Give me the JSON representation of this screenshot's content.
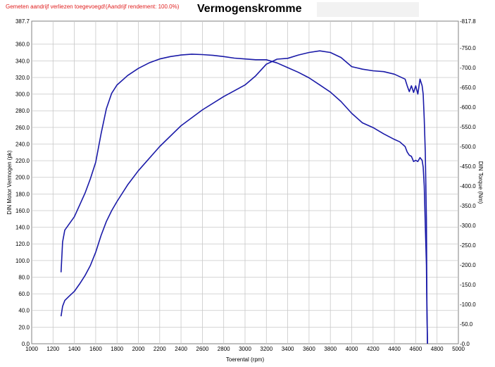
{
  "header": {
    "notice": "Gemeten aandrijf verliezen toegevoegd!(Aandrijf rendement: 100.0%)"
  },
  "chart_data": {
    "type": "line",
    "title": "Vermogenskromme",
    "xlabel": "Toerental (rpm)",
    "ylabel_left": "DIN Motor Vermogen (pk)",
    "ylabel_right": "DIN Torque (Nm)",
    "xlim": [
      1000,
      5000
    ],
    "ylim_left": [
      0,
      387.7
    ],
    "ylim_right": [
      0,
      817.8
    ],
    "grid": true,
    "x_ticks": [
      "1000",
      "1200",
      "1400",
      "1600",
      "1800",
      "2000",
      "2200",
      "2400",
      "2600",
      "2800",
      "3000",
      "3200",
      "3400",
      "3600",
      "3800",
      "4000",
      "4200",
      "4400",
      "4600",
      "4800",
      "5000"
    ],
    "y_ticks_left": [
      "0.0",
      "20.0",
      "40.0",
      "60.0",
      "80.0",
      "100.0",
      "120.0",
      "140.0",
      "160.0",
      "180.0",
      "200.0",
      "220.0",
      "240.0",
      "260.0",
      "280.0",
      "300.0",
      "320.0",
      "340.0",
      "360.0"
    ],
    "y_top_left": "387.7",
    "y_ticks_right": [
      "0.0",
      "50.0",
      "100.0",
      "150.0",
      "200.0",
      "250.0",
      "300.0",
      "350.0",
      "400.0",
      "450.0",
      "500.0",
      "550.0",
      "600.0",
      "650.0",
      "700.0",
      "750.0"
    ],
    "y_top_right": "817.8",
    "series": [
      {
        "axis": "left",
        "color": "#1a1aa8",
        "points": [
          [
            1275,
            33
          ],
          [
            1290,
            45
          ],
          [
            1310,
            52
          ],
          [
            1350,
            57
          ],
          [
            1400,
            63
          ],
          [
            1450,
            72
          ],
          [
            1500,
            82
          ],
          [
            1550,
            94
          ],
          [
            1600,
            110
          ],
          [
            1650,
            130
          ],
          [
            1700,
            147
          ],
          [
            1750,
            160
          ],
          [
            1800,
            171
          ],
          [
            1900,
            191
          ],
          [
            2000,
            208
          ],
          [
            2200,
            237
          ],
          [
            2400,
            262
          ],
          [
            2600,
            281
          ],
          [
            2800,
            297
          ],
          [
            3000,
            311
          ],
          [
            3100,
            322
          ],
          [
            3200,
            336
          ],
          [
            3300,
            342
          ],
          [
            3400,
            343
          ],
          [
            3500,
            347
          ],
          [
            3600,
            350
          ],
          [
            3700,
            352
          ],
          [
            3800,
            350
          ],
          [
            3900,
            344
          ],
          [
            4000,
            333
          ],
          [
            4100,
            330
          ],
          [
            4200,
            328
          ],
          [
            4300,
            327
          ],
          [
            4400,
            324
          ],
          [
            4500,
            318
          ],
          [
            4520,
            310
          ],
          [
            4540,
            303
          ],
          [
            4560,
            310
          ],
          [
            4580,
            302
          ],
          [
            4600,
            310
          ],
          [
            4620,
            300
          ],
          [
            4640,
            318
          ],
          [
            4660,
            310
          ],
          [
            4670,
            300
          ],
          [
            4680,
            270
          ],
          [
            4690,
            230
          ],
          [
            4700,
            150
          ],
          [
            4705,
            50
          ],
          [
            4710,
            0
          ]
        ]
      },
      {
        "axis": "right",
        "color": "#1a1aa8",
        "points": [
          [
            1275,
            181
          ],
          [
            1290,
            258
          ],
          [
            1310,
            288
          ],
          [
            1350,
            303
          ],
          [
            1400,
            322
          ],
          [
            1450,
            352
          ],
          [
            1500,
            382
          ],
          [
            1550,
            418
          ],
          [
            1600,
            460
          ],
          [
            1650,
            532
          ],
          [
            1700,
            596
          ],
          [
            1750,
            635
          ],
          [
            1800,
            656
          ],
          [
            1900,
            680
          ],
          [
            2000,
            698
          ],
          [
            2100,
            712
          ],
          [
            2200,
            722
          ],
          [
            2300,
            728
          ],
          [
            2400,
            732
          ],
          [
            2500,
            734
          ],
          [
            2600,
            733
          ],
          [
            2700,
            731
          ],
          [
            2800,
            728
          ],
          [
            2900,
            724
          ],
          [
            3000,
            722
          ],
          [
            3100,
            720
          ],
          [
            3200,
            720
          ],
          [
            3300,
            712
          ],
          [
            3400,
            700
          ],
          [
            3500,
            688
          ],
          [
            3600,
            674
          ],
          [
            3700,
            656
          ],
          [
            3800,
            638
          ],
          [
            3900,
            614
          ],
          [
            4000,
            584
          ],
          [
            4100,
            560
          ],
          [
            4200,
            548
          ],
          [
            4300,
            532
          ],
          [
            4400,
            518
          ],
          [
            4450,
            512
          ],
          [
            4500,
            500
          ],
          [
            4520,
            486
          ],
          [
            4540,
            478
          ],
          [
            4560,
            475
          ],
          [
            4580,
            462
          ],
          [
            4600,
            465
          ],
          [
            4620,
            462
          ],
          [
            4640,
            472
          ],
          [
            4660,
            465
          ],
          [
            4670,
            448
          ],
          [
            4680,
            400
          ],
          [
            4690,
            300
          ],
          [
            4700,
            200
          ],
          [
            4705,
            80
          ],
          [
            4710,
            0
          ]
        ]
      }
    ]
  }
}
